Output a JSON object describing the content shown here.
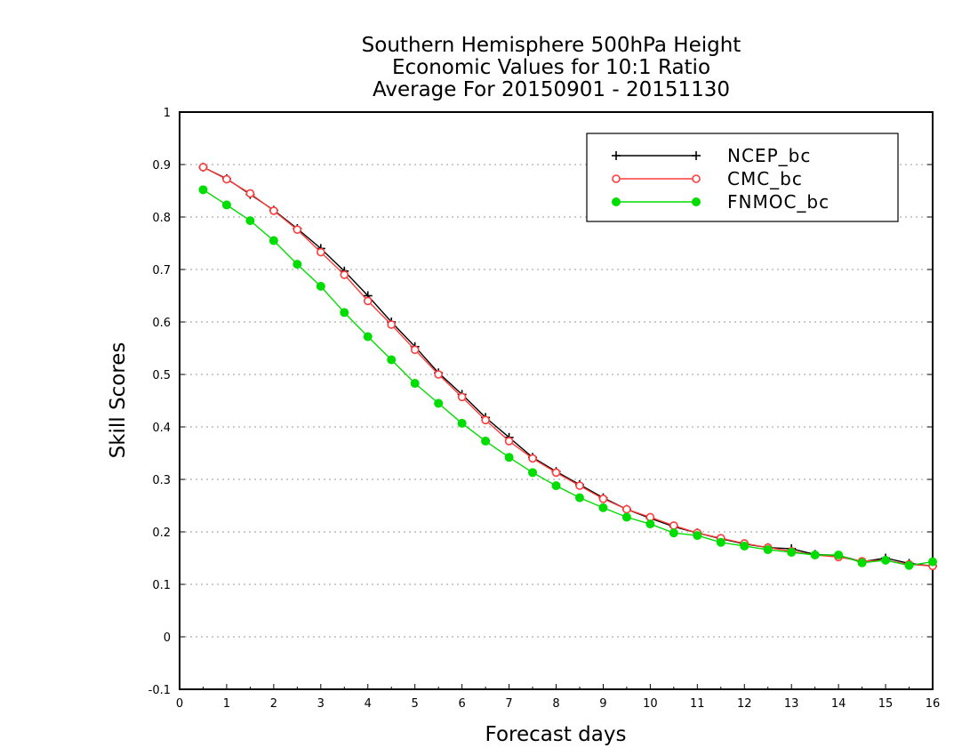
{
  "chart_data": {
    "type": "line",
    "title": [
      "Southern Hemisphere 500hPa Height",
      "Economic Values for 10:1 Ratio",
      "Average For 20150901 - 20151130"
    ],
    "xlabel": "Forecast days",
    "ylabel": "Skill Scores",
    "xlim": [
      0,
      16
    ],
    "ylim": [
      -0.1,
      1
    ],
    "x_ticks": [
      "0",
      "1",
      "2",
      "3",
      "4",
      "5",
      "6",
      "7",
      "8",
      "9",
      "10",
      "11",
      "12",
      "13",
      "14",
      "15",
      "16"
    ],
    "y_ticks": [
      "-0.1",
      "0",
      "0.1",
      "0.2",
      "0.3",
      "0.4",
      "0.5",
      "0.6",
      "0.7",
      "0.8",
      "0.9",
      "1"
    ],
    "grid": "horizontal dotted",
    "legend_position": "top-right",
    "x": [
      0.5,
      1,
      1.5,
      2,
      2.5,
      3,
      3.5,
      4,
      4.5,
      5,
      5.5,
      6,
      6.5,
      7,
      7.5,
      8,
      8.5,
      9,
      9.5,
      10,
      10.5,
      11,
      11.5,
      12,
      12.5,
      13,
      13.5,
      14,
      14.5,
      15,
      15.5,
      16
    ],
    "series": [
      {
        "name": "NCEP_bc",
        "color": "#000000",
        "marker": "plus",
        "values": [
          0.895,
          0.873,
          0.843,
          0.813,
          0.778,
          0.74,
          0.697,
          0.65,
          0.6,
          0.553,
          0.503,
          0.462,
          0.418,
          0.38,
          0.342,
          0.315,
          0.29,
          0.265,
          0.243,
          0.226,
          0.21,
          0.198,
          0.187,
          0.177,
          0.17,
          0.168,
          0.157,
          0.155,
          0.143,
          0.15,
          0.14,
          0.135
        ]
      },
      {
        "name": "CMC_bc",
        "color": "#ff3b3b",
        "marker": "open-circle",
        "values": [
          0.895,
          0.872,
          0.845,
          0.812,
          0.776,
          0.733,
          0.69,
          0.64,
          0.595,
          0.547,
          0.5,
          0.457,
          0.413,
          0.373,
          0.34,
          0.313,
          0.288,
          0.263,
          0.243,
          0.228,
          0.212,
          0.198,
          0.188,
          0.178,
          0.17,
          0.163,
          0.156,
          0.152,
          0.144,
          0.146,
          0.138,
          0.135
        ]
      },
      {
        "name": "FNMOC_bc",
        "color": "#00dd00",
        "marker": "filled-circle",
        "values": [
          0.852,
          0.823,
          0.793,
          0.755,
          0.71,
          0.668,
          0.618,
          0.572,
          0.528,
          0.483,
          0.445,
          0.407,
          0.373,
          0.342,
          0.313,
          0.288,
          0.265,
          0.246,
          0.228,
          0.215,
          0.198,
          0.193,
          0.18,
          0.173,
          0.166,
          0.161,
          0.156,
          0.156,
          0.141,
          0.146,
          0.136,
          0.143
        ]
      }
    ]
  }
}
